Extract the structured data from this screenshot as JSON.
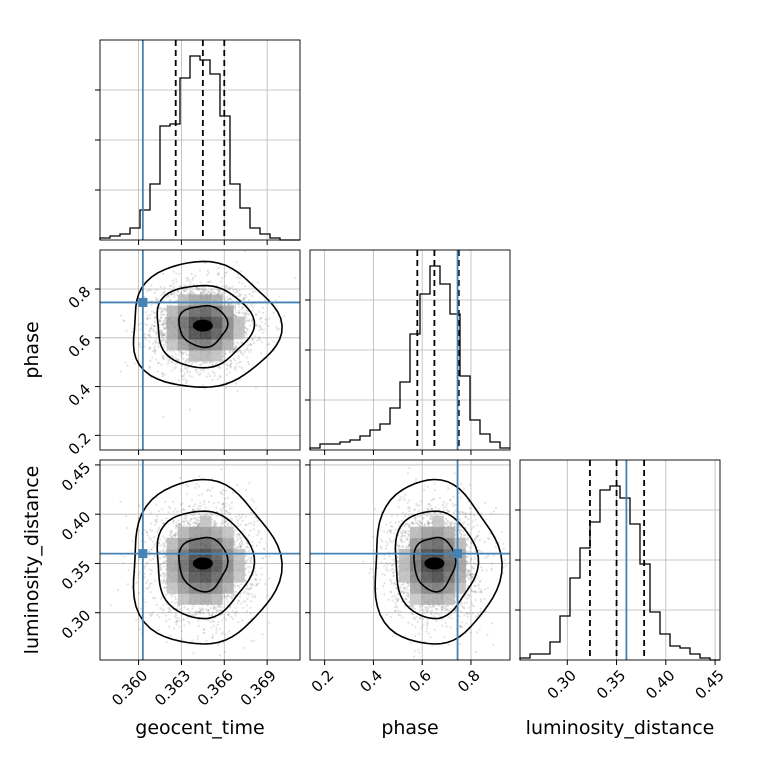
{
  "chart_data": {
    "type": "corner",
    "parameters": [
      {
        "key": "geocent_time",
        "label": "geocent_time",
        "range": [
          0.3573,
          0.3713
        ],
        "ticks": [
          0.36,
          0.363,
          0.366,
          0.369
        ],
        "tick_labels": [
          "0.360",
          "0.363",
          "0.366",
          "0.369"
        ],
        "truth": 0.3603,
        "median": 0.3645,
        "quantiles": [
          0.3626,
          0.366
        ],
        "hist_max": 0.01,
        "hist_edges": [
          0.3573,
          0.358,
          0.3587,
          0.3594,
          0.3601,
          0.3608,
          0.3615,
          0.3622,
          0.3629,
          0.3636,
          0.3643,
          0.365,
          0.3657,
          0.3664,
          0.3671,
          0.3678,
          0.3685,
          0.3692,
          0.3699,
          0.3706,
          0.3713
        ],
        "hist_values": [
          0.0001,
          0.0002,
          0.0003,
          0.0006,
          0.0015,
          0.0028,
          0.0057,
          0.0058,
          0.0081,
          0.0092,
          0.009,
          0.0083,
          0.0062,
          0.0028,
          0.0016,
          0.0006,
          0.0003,
          0.0001,
          0.0,
          0.0
        ]
      },
      {
        "key": "phase",
        "label": "phase",
        "range": [
          0.14,
          0.96
        ],
        "ticks": [
          0.2,
          0.4,
          0.6,
          0.8
        ],
        "tick_labels": [
          "0.2",
          "0.4",
          "0.6",
          "0.8"
        ],
        "truth": 0.745,
        "median": 0.65,
        "quantiles": [
          0.58,
          0.75
        ],
        "hist_max": 0.01,
        "hist_edges": [
          0.14,
          0.181,
          0.222,
          0.263,
          0.304,
          0.345,
          0.386,
          0.427,
          0.468,
          0.509,
          0.55,
          0.591,
          0.632,
          0.673,
          0.714,
          0.755,
          0.796,
          0.837,
          0.878,
          0.919,
          0.96
        ],
        "hist_values": [
          0.0001,
          0.0003,
          0.0003,
          0.0004,
          0.0005,
          0.0007,
          0.001,
          0.0013,
          0.0021,
          0.0034,
          0.0058,
          0.0078,
          0.0092,
          0.0083,
          0.0068,
          0.0037,
          0.0015,
          0.0008,
          0.0004,
          0.0001
        ]
      },
      {
        "key": "luminosity_distance",
        "label": "luminosity_distance",
        "range": [
          0.252,
          0.455
        ],
        "ticks": [
          0.3,
          0.35,
          0.4,
          0.45
        ],
        "tick_labels": [
          "0.30",
          "0.35",
          "0.40",
          "0.45"
        ],
        "truth": 0.36,
        "median": 0.35,
        "quantiles": [
          0.323,
          0.378
        ],
        "hist_max": 0.01,
        "hist_edges": [
          0.252,
          0.26215,
          0.2723,
          0.28245,
          0.2926,
          0.30275,
          0.3129,
          0.32305,
          0.3332,
          0.34335,
          0.3535,
          0.36365,
          0.3738,
          0.38395,
          0.3941,
          0.40425,
          0.4144,
          0.42455,
          0.4347,
          0.44485,
          0.455
        ],
        "hist_values": [
          0.0001,
          0.0003,
          0.0003,
          0.0009,
          0.0022,
          0.0041,
          0.0056,
          0.0069,
          0.0085,
          0.0087,
          0.0081,
          0.0068,
          0.0048,
          0.0024,
          0.0013,
          0.0007,
          0.0006,
          0.0003,
          0.0001,
          0.0
        ]
      }
    ],
    "contour_levels": [
      0.39,
      0.86,
      0.99
    ],
    "scatter_samples": 2500,
    "truth_color": "#4682b4",
    "hist_color": "#000000",
    "grid": true,
    "legend": "none"
  }
}
